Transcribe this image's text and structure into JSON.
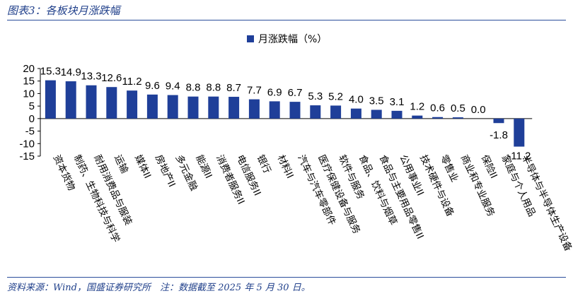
{
  "page": {
    "figure_title": "图表3：各板块月涨跌幅",
    "source_note": "资料来源：Wind，国盛证券研究所　注：数据截至 2025 年 5 月 30 日。"
  },
  "colors": {
    "bar": "#1f3f99",
    "accent": "#1f3f8a",
    "rule": "#2a4d9b"
  },
  "chart_data": {
    "type": "bar",
    "title": "",
    "xlabel": "",
    "ylabel": "",
    "legend": {
      "position": "top-center",
      "entries": [
        "月涨跌幅（%）"
      ]
    },
    "grid": false,
    "ylim": [
      -15,
      20
    ],
    "yticks": [
      20,
      15,
      10,
      5,
      0,
      -5,
      -10,
      -15
    ],
    "series": [
      {
        "name": "月涨跌幅（%）",
        "values": [
          15.3,
          14.9,
          13.3,
          12.6,
          11.2,
          9.6,
          9.4,
          8.8,
          8.8,
          8.7,
          7.7,
          6.9,
          6.7,
          5.3,
          5.2,
          4.0,
          3.5,
          3.1,
          1.2,
          0.6,
          0.5,
          0.0,
          -1.8,
          -11.2
        ],
        "labels": [
          "15.3",
          "14.9",
          "13.3",
          "12.6",
          "11.2",
          "9.6",
          "9.4",
          "8.8",
          "8.8",
          "8.7",
          "7.7",
          "6.9",
          "6.7",
          "5.3",
          "5.2",
          "4.0",
          "3.5",
          "3.1",
          "1.2",
          "0.6",
          "0.5",
          "0.0",
          "-1.8",
          "-11.2"
        ]
      }
    ],
    "categories": [
      "资本货物",
      "制药、生物科技与科学",
      "耐用消费品与服装",
      "运输",
      "媒体II",
      "房地产II",
      "多元金融",
      "能源II",
      "消费者服务II",
      "电信服务II",
      "银行",
      "材料II",
      "汽车与汽车零部件",
      "医疗保健设备与服务",
      "软件与服务",
      "食品、饮料与烟草",
      "食品与主要用品零售II",
      "公用事业II",
      "技术硬件与设备",
      "零售业",
      "商业和专业服务",
      "保险II",
      "家庭与个人用品",
      "半导体与半导体生产设备"
    ]
  }
}
